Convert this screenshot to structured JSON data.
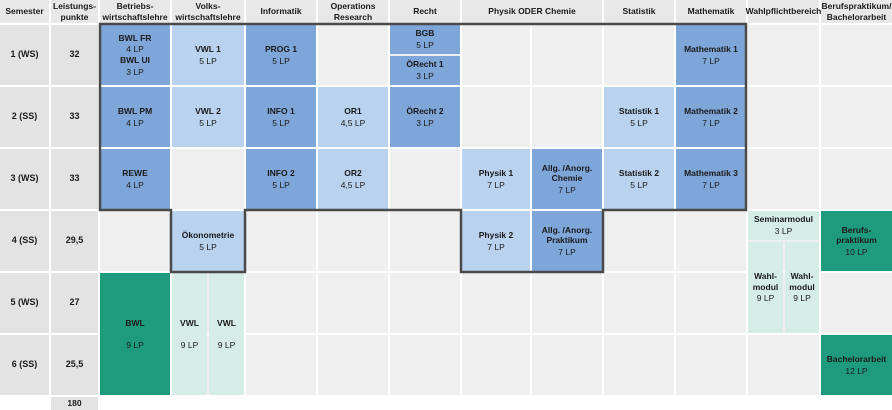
{
  "headers": {
    "semester": "Semester",
    "leistungspunkte": "Leistungs-\npunkte",
    "bwl": "Betriebs-\nwirtschaftslehre",
    "vwl": "Volks-\nwirtschaftslehre",
    "informatik": "Informatik",
    "or": "Operations\nResearch",
    "recht": "Recht",
    "physik_chemie": "Physik ODER Chemie",
    "statistik": "Statistik",
    "mathematik": "Mathematik",
    "wahlpflicht": "Wahlpflichtbereich",
    "berufspraktikum": "Berufspraktikum/\nBachelorarbeit"
  },
  "rows": [
    {
      "semester": "1 (WS)",
      "lp": "32"
    },
    {
      "semester": "2 (SS)",
      "lp": "33"
    },
    {
      "semester": "3 (WS)",
      "lp": "33"
    },
    {
      "semester": "4 (SS)",
      "lp": "29,5"
    },
    {
      "semester": "5 (WS)",
      "lp": "27"
    },
    {
      "semester": "6 (SS)",
      "lp": "25,5"
    }
  ],
  "total_lp": "180",
  "modules": {
    "bwl_fr": {
      "name": "BWL FR",
      "lp": "4 LP"
    },
    "bwl_ui": {
      "name": "BWL UI",
      "lp": "3 LP"
    },
    "bwl_pm": {
      "name": "BWL PM",
      "lp": "4 LP"
    },
    "rewe": {
      "name": "REWE",
      "lp": "4 LP"
    },
    "bwl_elective": {
      "name": "BWL",
      "lp": "9 LP"
    },
    "vwl1": {
      "name": "VWL 1",
      "lp": "5 LP"
    },
    "vwl2": {
      "name": "VWL 2",
      "lp": "5 LP"
    },
    "oekonometrie": {
      "name": "Ökonometrie",
      "lp": "5 LP"
    },
    "vwl_a": {
      "name": "VWL",
      "lp": "9 LP"
    },
    "vwl_b": {
      "name": "VWL",
      "lp": "9 LP"
    },
    "prog1": {
      "name": "PROG 1",
      "lp": "5 LP"
    },
    "info1": {
      "name": "INFO 1",
      "lp": "5 LP"
    },
    "info2": {
      "name": "INFO 2",
      "lp": "5 LP"
    },
    "or1": {
      "name": "OR1",
      "lp": "4,5 LP"
    },
    "or2": {
      "name": "OR2",
      "lp": "4,5 LP"
    },
    "bgb": {
      "name": "BGB",
      "lp": "5 LP"
    },
    "oerecht1": {
      "name": "ÖRecht 1",
      "lp": "3 LP"
    },
    "oerecht2": {
      "name": "ÖRecht 2",
      "lp": "3 LP"
    },
    "physik1": {
      "name": "Physik 1",
      "lp": "7 LP"
    },
    "physik2": {
      "name": "Physik 2",
      "lp": "7 LP"
    },
    "chemie1": {
      "name": "Allg. /Anorg.\nChemie",
      "lp": "7 LP"
    },
    "chemie2": {
      "name": "Allg. /Anorg.\nPraktikum",
      "lp": "7 LP"
    },
    "statistik1": {
      "name": "Statistik 1",
      "lp": "5 LP"
    },
    "statistik2": {
      "name": "Statistik 2",
      "lp": "5 LP"
    },
    "mathe1": {
      "name": "Mathematik 1",
      "lp": "7 LP"
    },
    "mathe2": {
      "name": "Mathematik 2",
      "lp": "7 LP"
    },
    "mathe3": {
      "name": "Mathematik 3",
      "lp": "7 LP"
    },
    "seminar": {
      "name": "Seminarmodul",
      "lp": "3 LP"
    },
    "wahl1": {
      "name": "Wahl-\nmodul",
      "lp": "9 LP"
    },
    "wahl2": {
      "name": "Wahl-\nmodul",
      "lp": "9 LP"
    },
    "berufspraktikum": {
      "name": "Berufs-\npraktikum",
      "lp": "10 LP"
    },
    "bachelorarbeit": {
      "name": "Bachelorarbeit",
      "lp": "12 LP"
    }
  },
  "colors": {
    "mandatory_dark": "#7fa6d9",
    "mandatory_light": "#b9d2ee",
    "elective_dark": "#1e9a7d",
    "elective_light": "#d6ede7",
    "empty": "#efefef",
    "header": "#e8e8e8"
  }
}
